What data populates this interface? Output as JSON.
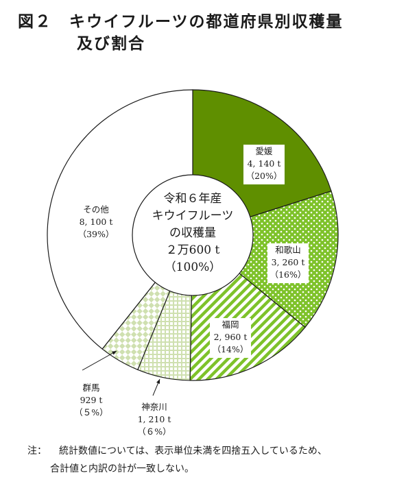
{
  "title": {
    "line1": "図２　キウイフルーツの都道府県別収穫量",
    "line2": "及び割合"
  },
  "chart_data": {
    "type": "pie",
    "center_label": [
      "令和６年産",
      "キウイフルーツ",
      "の収穫量",
      "２万600 t",
      "（100%）"
    ],
    "slices": [
      {
        "name": "愛媛",
        "value": 4140,
        "value_label": "4, 140 t",
        "percent": 20,
        "percent_label": "（20%）",
        "color": "#5f8f00",
        "pattern": "solid"
      },
      {
        "name": "和歌山",
        "value": 3260,
        "value_label": "3, 260 t",
        "percent": 16,
        "percent_label": "（16%）",
        "color": "#7ec22a",
        "pattern": "dots"
      },
      {
        "name": "福岡",
        "value": 2960,
        "value_label": "2, 960 t",
        "percent": 14,
        "percent_label": "（14%）",
        "color": "#7ec22a",
        "pattern": "diagonal-stripes"
      },
      {
        "name": "神奈川",
        "value": 1210,
        "value_label": "1, 210 t",
        "percent": 6,
        "percent_label": "（６%）",
        "color": "#cfe0b0",
        "pattern": "grid"
      },
      {
        "name": "群馬",
        "value": 929,
        "value_label": "929 t",
        "percent": 5,
        "percent_label": "（５%）",
        "color": "#cfe0b0",
        "pattern": "checker"
      },
      {
        "name": "その他",
        "value": 8100,
        "value_label": "8, 100 t",
        "percent": 39,
        "percent_label": "（39%）",
        "color": "#ffffff",
        "pattern": "none"
      }
    ]
  },
  "note": {
    "prefix": "注：",
    "line1": "統計数値については、表示単位未満を四捨五入しているため、",
    "line2": "合計値と内訳の計が一致しない。"
  }
}
